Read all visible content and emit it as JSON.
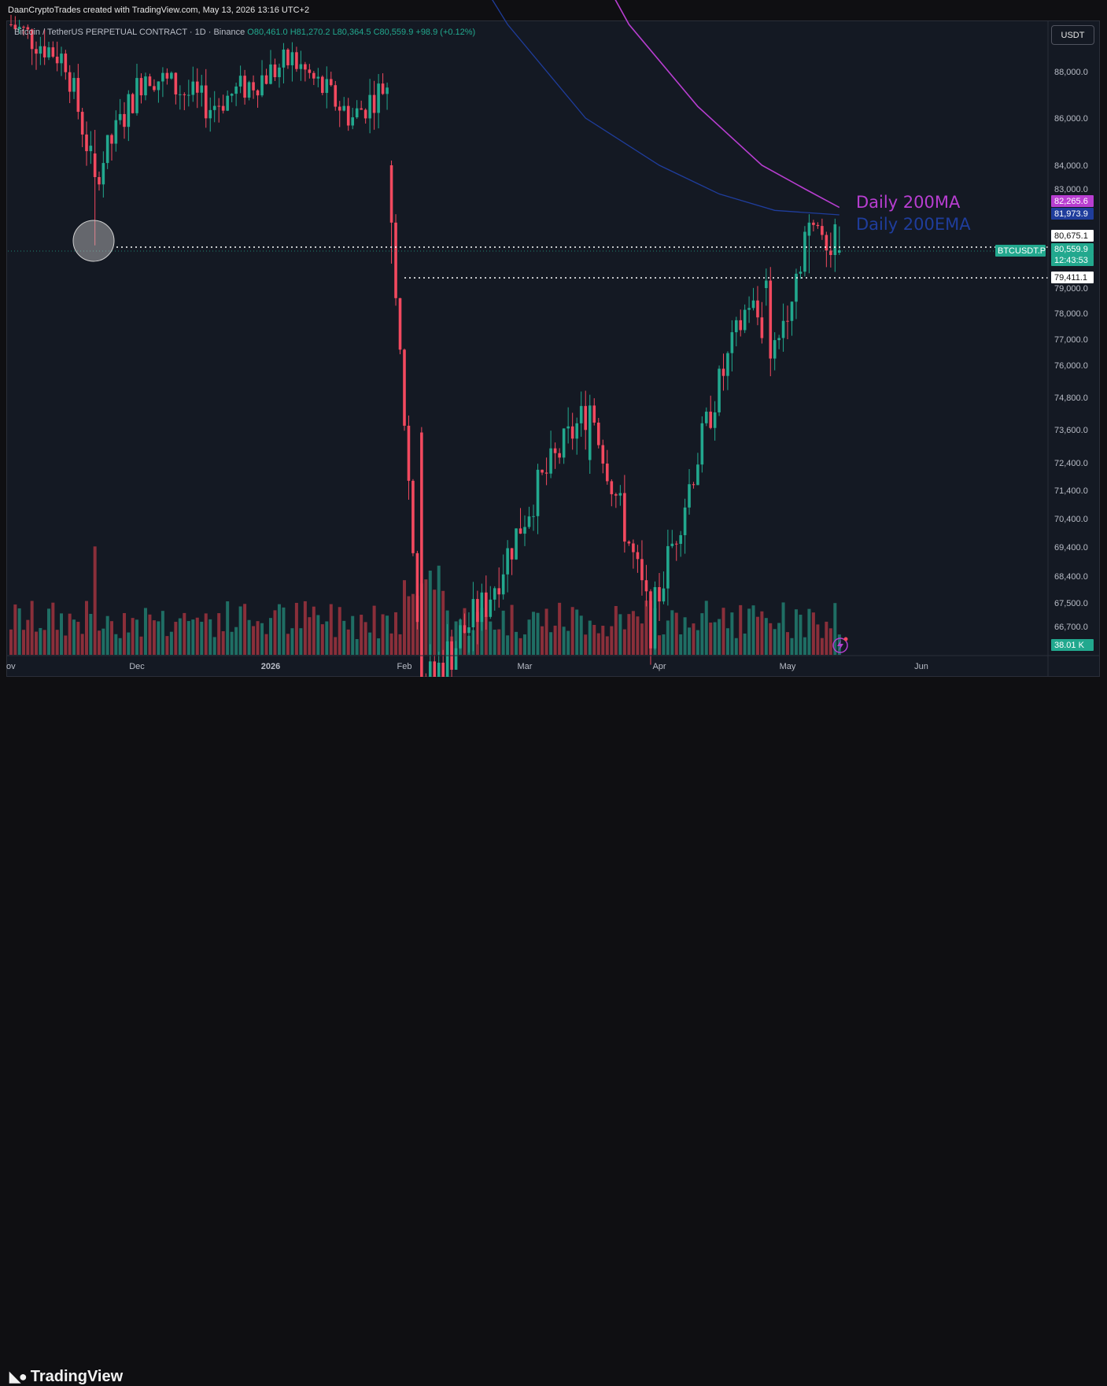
{
  "attribution": "DaanCryptoTrades created with TradingView.com, May 13, 2026 13:16 UTC+2",
  "legend": {
    "symbol": "Bitcoin / TetherUS PERPETUAL CONTRACT · 1D · Binance",
    "o": "O80,461.0",
    "h": "H81,270.2",
    "l": "L80,364.5",
    "c": "C80,559.9",
    "change": "+98.9 (+0.12%)"
  },
  "currency_button": "USDT",
  "brand": "TradingView",
  "colors": {
    "up": "#22a88e",
    "down": "#f2495f",
    "ma": "#b83ed1",
    "ema": "#1f3d9c",
    "background": "#141923"
  },
  "annotations": {
    "ma_text": "Daily 200MA",
    "ema_text": "Daily 200EMA"
  },
  "chart_data": {
    "type": "candlestick",
    "title": "",
    "timeframe": "1D",
    "y_axis": {
      "ticks": [
        "88,000.0",
        "86,000.0",
        "84,000.0",
        "83,000.0",
        "81,973.9",
        "79,000.0",
        "78,000.0",
        "77,000.0",
        "76,000.0",
        "74,800.0",
        "73,600.0",
        "72,400.0",
        "71,400.0",
        "70,400.0",
        "69,400.0",
        "68,400.0",
        "67,500.0",
        "66,700.0"
      ],
      "tick_values": [
        88000,
        86000,
        84000,
        83000,
        81973.9,
        79000,
        78000,
        77000,
        76000,
        74800,
        73600,
        72400,
        71400,
        70400,
        69400,
        68400,
        67500,
        66700
      ]
    },
    "x_axis": {
      "ticks": [
        "ov",
        "Dec",
        "2026",
        "Feb",
        "Mar",
        "Apr",
        "May",
        "Jun"
      ],
      "tick_dates": [
        "2025-11-01",
        "2025-12-01",
        "2026-01-01",
        "2026-02-01",
        "2026-03-01",
        "2026-04-01",
        "2026-05-01",
        "2026-06-01"
      ]
    },
    "price_labels": [
      {
        "name": "Daily 200MA",
        "value": "82,265.6",
        "color": "#b83ed1"
      },
      {
        "name": "Daily 200EMA",
        "value": "81,973.9",
        "color": "#1f3d9c"
      },
      {
        "name": "level",
        "value": "80,675.1",
        "color": "#ffffff"
      },
      {
        "name": "BTCUSDT.P",
        "value": "80,559.9",
        "color": "#22a88e"
      },
      {
        "name": "countdown",
        "value": "12:43:53",
        "color": "#22a88e"
      },
      {
        "name": "level",
        "value": "79,411.1",
        "color": "#ffffff"
      },
      {
        "name": "volume",
        "value": "38.01 K",
        "color": "#22a88e"
      }
    ],
    "current_symbol_tag": "BTCUSDT.P",
    "horizontal_levels": [
      80675.1,
      79411.1
    ],
    "candles_ohlc_samples": [
      {
        "date": "2025-11-21",
        "o": 84500,
        "h": 85500,
        "l": 80600,
        "c": 83500
      },
      {
        "date": "2026-01-29",
        "o": 84000,
        "h": 84200,
        "l": 80000,
        "c": 81500
      },
      {
        "date": "2026-01-30",
        "o": 81500,
        "h": 82000,
        "l": 78300,
        "c": 78600
      },
      {
        "date": "2026-02-05",
        "o": 73500,
        "h": 73700,
        "l": 62800,
        "c": 64800
      },
      {
        "date": "2026-03-16",
        "o": 72500,
        "h": 74900,
        "l": 72000,
        "c": 74500
      },
      {
        "date": "2026-04-26",
        "o": 79000,
        "h": 79800,
        "l": 78300,
        "c": 79300
      },
      {
        "date": "2026-05-06",
        "o": 80700,
        "h": 82000,
        "l": 79600,
        "c": 81500
      },
      {
        "date": "2026-05-13",
        "o": 80461.0,
        "h": 81270.2,
        "l": 80364.5,
        "c": 80559.9
      }
    ],
    "volume_last": "38.01 K",
    "grid": false
  }
}
